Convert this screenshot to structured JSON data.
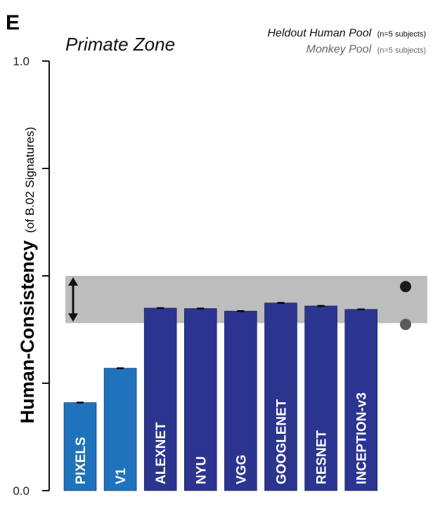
{
  "panel_letter": "E",
  "chart_data": {
    "type": "bar",
    "ylabel": "Human-Consistency",
    "ylabel_sub": "(of B.02 Signatures)",
    "ylim": [
      0,
      1
    ],
    "y_tick_labels": [
      "0.0",
      "",
      "",
      "",
      "",
      "",
      "",
      "",
      "1.0"
    ],
    "categories": [
      "PIXELS",
      "V1",
      "ALEXNET",
      "NYU",
      "VGG",
      "GOOGLENET",
      "RESNET",
      "INCEPTION-v3"
    ],
    "values": [
      0.205,
      0.285,
      0.425,
      0.424,
      0.418,
      0.437,
      0.43,
      0.422
    ],
    "bar_colors": [
      "#1e73bc",
      "#1e73bc",
      "#2b3590",
      "#2b3590",
      "#2b3590",
      "#2b3590",
      "#2b3590",
      "#2b3590"
    ],
    "primate_zone": {
      "label": "Primate Zone",
      "lower": 0.39,
      "upper": 0.5,
      "color": "#bdbdbd"
    },
    "reference_points": [
      {
        "name": "Heldout Human Pool",
        "detail": "(n=5 subjects)",
        "value": 0.475,
        "color": "#1a1a1a"
      },
      {
        "name": "Monkey Pool",
        "detail": "(n=5 subjects)",
        "value": 0.387,
        "color": "#5a5a5a"
      }
    ],
    "grid": false
  }
}
